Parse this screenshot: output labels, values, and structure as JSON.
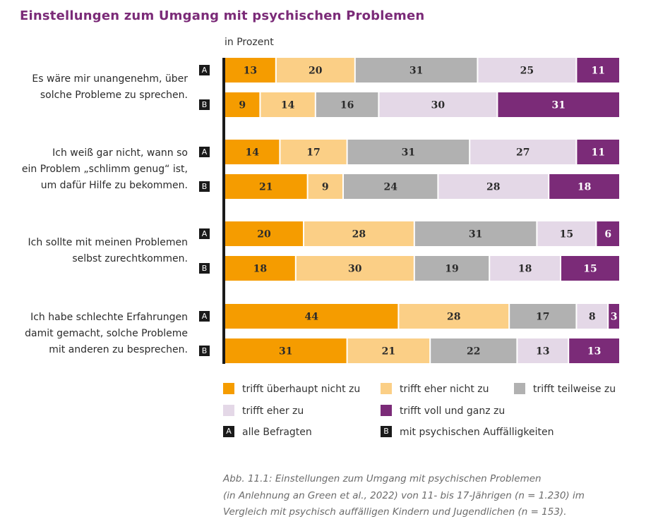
{
  "title": "Einstellungen zum Umgang mit psychischen Problemen",
  "chart_data": {
    "type": "bar",
    "orientation": "horizontal-stacked-100",
    "unit_label": "in Prozent",
    "categories": [
      {
        "label_lines": [
          "Es wäre mir unangenehm, über",
          "solche Probleme zu sprechen."
        ],
        "A": [
          13,
          20,
          31,
          25,
          11
        ],
        "B": [
          9,
          14,
          16,
          30,
          31
        ]
      },
      {
        "label_lines": [
          "Ich weiß gar nicht, wann so",
          "ein Problem „schlimm genug“ ist,",
          "um dafür Hilfe zu bekommen."
        ],
        "A": [
          14,
          17,
          31,
          27,
          11
        ],
        "B": [
          21,
          9,
          24,
          28,
          18
        ]
      },
      {
        "label_lines": [
          "Ich sollte mit meinen Problemen",
          "selbst zurechtkommen."
        ],
        "A": [
          20,
          28,
          31,
          15,
          6
        ],
        "B": [
          18,
          30,
          19,
          18,
          15
        ]
      },
      {
        "label_lines": [
          "Ich habe schlechte Erfahrungen",
          "damit gemacht, solche Probleme",
          "mit anderen zu besprechen."
        ],
        "A": [
          44,
          28,
          17,
          8,
          3
        ],
        "B": [
          31,
          21,
          22,
          13,
          13
        ]
      }
    ],
    "series": [
      {
        "name": "trifft überhaupt nicht zu",
        "color": "#f59c00",
        "text_color": "#2b2b2b"
      },
      {
        "name": "trifft eher nicht zu",
        "color": "#fbcf86",
        "text_color": "#2b2b2b"
      },
      {
        "name": "trifft teilweise zu",
        "color": "#b1b1b1",
        "text_color": "#2b2b2b"
      },
      {
        "name": "trifft eher zu",
        "color": "#e4d8e7",
        "text_color": "#2b2b2b"
      },
      {
        "name": "trifft voll und ganz zu",
        "color": "#7b2b78",
        "text_color": "#ffffff"
      }
    ],
    "groups": [
      {
        "key": "A",
        "name": "alle Befragten"
      },
      {
        "key": "B",
        "name": "mit psychischen Auffälligkeiten"
      }
    ],
    "xlim": [
      0,
      100
    ]
  },
  "caption_lines": [
    "Abb. 11.1: Einstellungen zum Umgang mit psychischen Problemen",
    "(in Anlehnung an Green et al., 2022) von 11- bis 17-Jährigen (n = 1.230) im",
    "Vergleich mit psychisch auffälligen Kindern und Jugendlichen (n = 153)."
  ]
}
